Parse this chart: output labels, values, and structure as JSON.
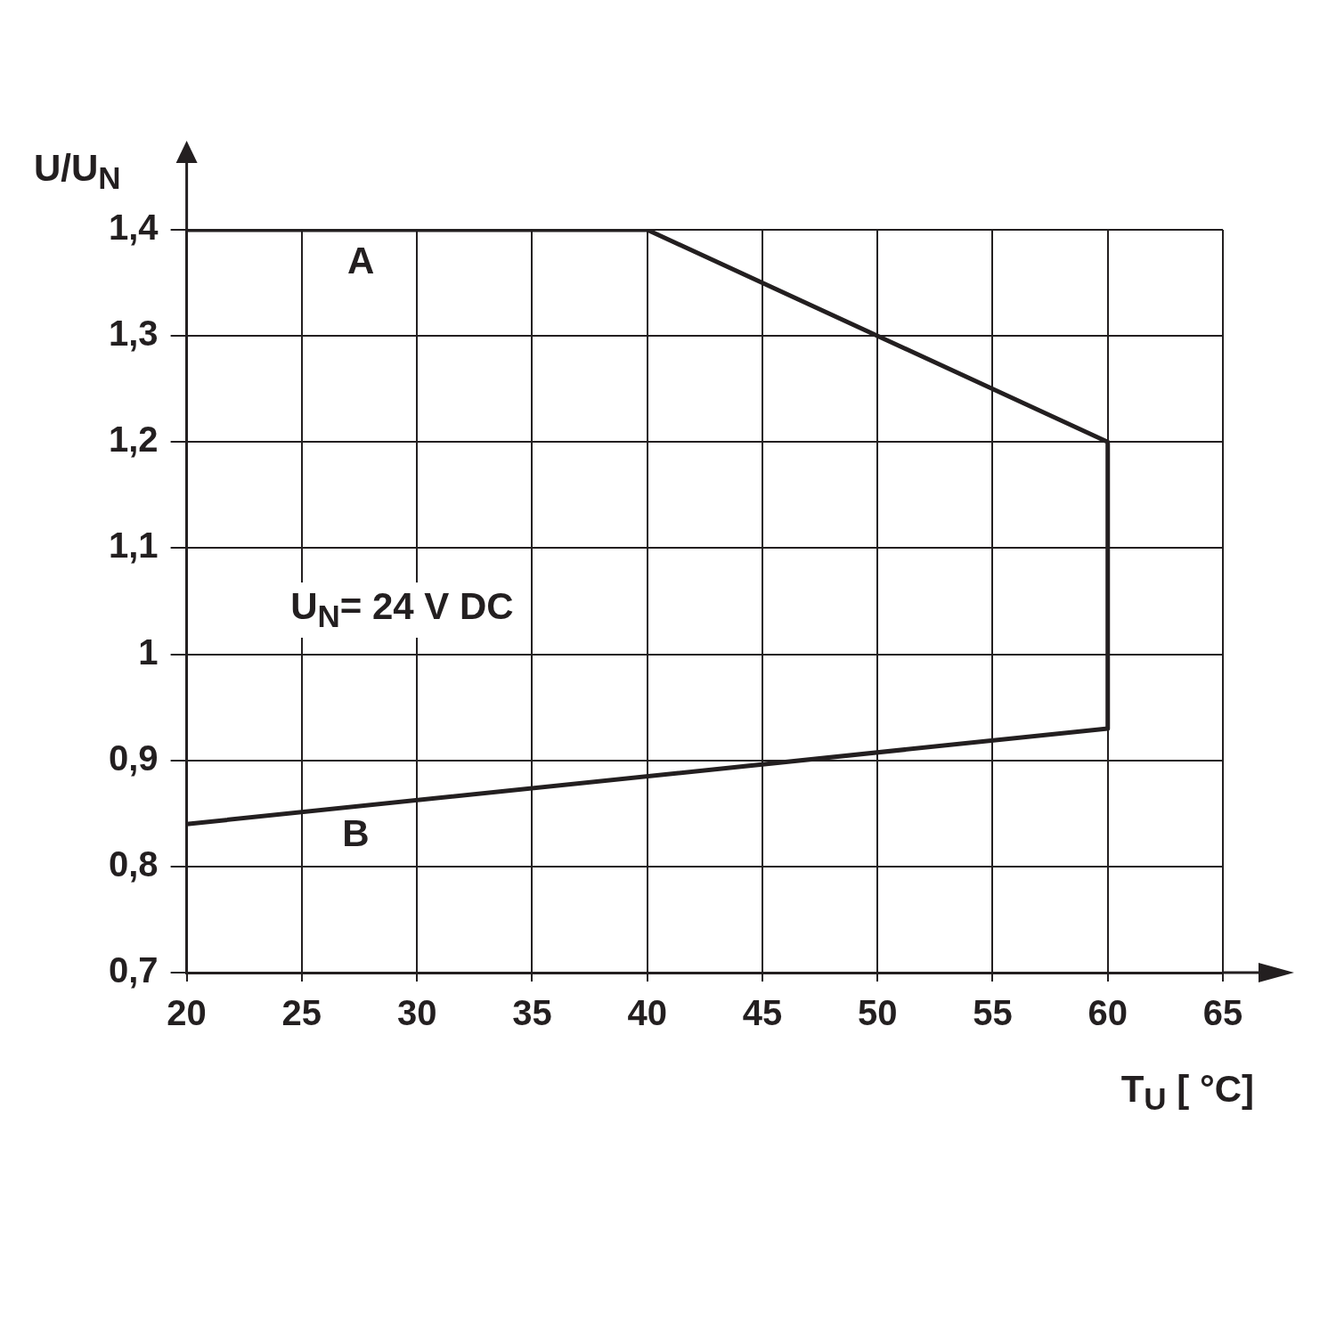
{
  "chart_data": {
    "type": "line",
    "xlabel": "T$_{U}$ [ °C]",
    "ylabel": "U/U$_{N}$",
    "xlim": [
      20,
      65
    ],
    "xticks": [
      20,
      25,
      30,
      35,
      40,
      45,
      50,
      55,
      60,
      65
    ],
    "ylim": [
      0.7,
      1.4
    ],
    "yticks": [
      {
        "value": 0.7,
        "label": "0,7"
      },
      {
        "value": 0.8,
        "label": "0,8"
      },
      {
        "value": 0.9,
        "label": "0,9"
      },
      1,
      {
        "value": 1.1,
        "label": "1,1"
      },
      {
        "value": 1.2,
        "label": "1,2"
      },
      {
        "value": 1.3,
        "label": "1,3"
      },
      {
        "value": 1.4,
        "label": "1,4"
      }
    ],
    "grid": true,
    "legend": false,
    "marker": "none",
    "line_style": "solid",
    "series": [
      {
        "color": "#231f20",
        "x": [
          20,
          40,
          60,
          60,
          20
        ],
        "values": [
          1.4,
          1.4,
          1.2,
          0.93,
          0.84
        ]
      }
    ],
    "annotations": [
      "A",
      "B",
      "U$_{N}$= 24 V DC"
    ]
  }
}
